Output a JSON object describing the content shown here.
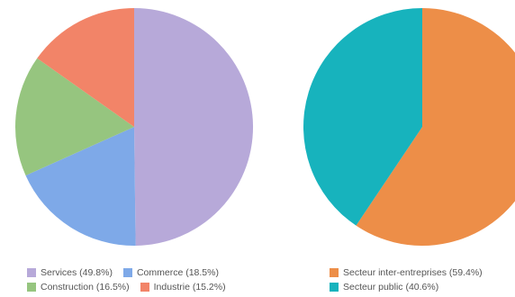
{
  "chart_data": [
    {
      "type": "pie",
      "slices": [
        {
          "label": "Services (49.8%)",
          "value": 49.8,
          "color": "#b7a9d9"
        },
        {
          "label": "Commerce (18.5%)",
          "value": 18.5,
          "color": "#7ea9e8"
        },
        {
          "label": "Construction (16.5%)",
          "value": 16.5,
          "color": "#96c57f"
        },
        {
          "label": "Industrie (15.2%)",
          "value": 15.2,
          "color": "#f28468"
        }
      ],
      "start": "top",
      "direction": "clockwise"
    },
    {
      "type": "pie",
      "slices": [
        {
          "label": "Secteur inter-entreprises (59.4%)",
          "value": 59.4,
          "color": "#ed8e48"
        },
        {
          "label": "Secteur public (40.6%)",
          "value": 40.6,
          "color": "#17b3bd"
        }
      ],
      "start": "top",
      "direction": "clockwise"
    }
  ]
}
